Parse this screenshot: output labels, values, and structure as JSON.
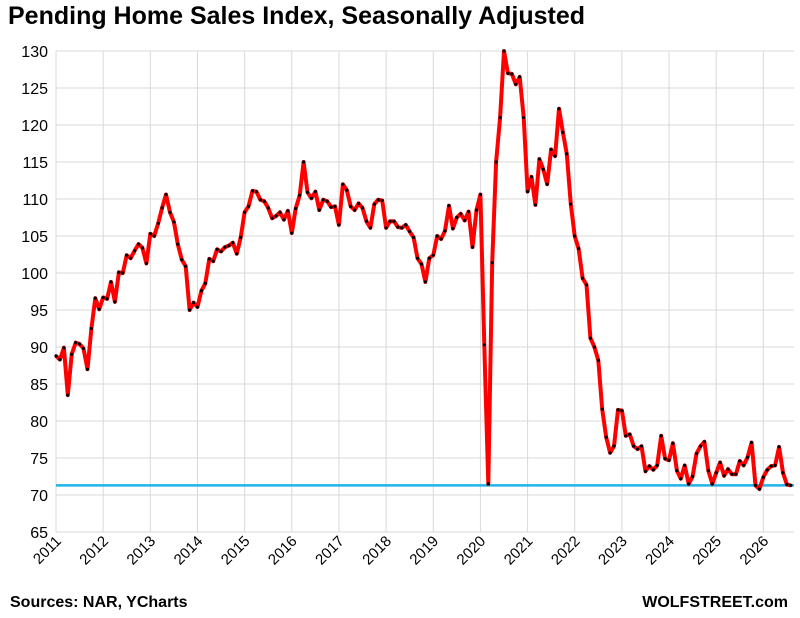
{
  "header": {
    "title": "Pending Home Sales Index, Seasonally Adjusted"
  },
  "footer": {
    "source": "Sources: NAR, YCharts",
    "credit": "WOLFSTREET.com"
  },
  "chart_data": {
    "type": "line",
    "title": "Pending Home Sales Index, Seasonally Adjusted",
    "xlabel": "",
    "ylabel": "",
    "xlim": [
      2011,
      2026.65
    ],
    "ylim": [
      65,
      130
    ],
    "y_ticks": [
      65,
      70,
      75,
      80,
      85,
      90,
      95,
      100,
      105,
      110,
      115,
      120,
      125,
      130
    ],
    "x_ticks": [
      "2011",
      "2012",
      "2013",
      "2014",
      "2015",
      "2016",
      "2017",
      "2018",
      "2019",
      "2020",
      "2021",
      "2022",
      "2023",
      "2024",
      "2025",
      "2026"
    ],
    "grid": true,
    "series_color": "#ff0000",
    "marker_color": "#000000",
    "reference_line": {
      "value": 71.3,
      "color": "#1eb4e6"
    },
    "series": [
      {
        "x": [
          2011.0,
          2011.083,
          2011.167,
          2011.25,
          2011.333,
          2011.417,
          2011.5,
          2011.583,
          2011.667,
          2011.75,
          2011.833,
          2011.917,
          2012.0,
          2012.083,
          2012.167,
          2012.25,
          2012.333,
          2012.417,
          2012.5,
          2012.583,
          2012.667,
          2012.75,
          2012.833,
          2012.917,
          2013.0,
          2013.083,
          2013.167,
          2013.25,
          2013.333,
          2013.417,
          2013.5,
          2013.583,
          2013.667,
          2013.75,
          2013.833,
          2013.917,
          2014.0,
          2014.083,
          2014.167,
          2014.25,
          2014.333,
          2014.417,
          2014.5,
          2014.583,
          2014.667,
          2014.75,
          2014.833,
          2014.917,
          2015.0,
          2015.083,
          2015.167,
          2015.25,
          2015.333,
          2015.417,
          2015.5,
          2015.583,
          2015.667,
          2015.75,
          2015.833,
          2015.917,
          2016.0,
          2016.083,
          2016.167,
          2016.25,
          2016.333,
          2016.417,
          2016.5,
          2016.583,
          2016.667,
          2016.75,
          2016.833,
          2016.917,
          2017.0,
          2017.083,
          2017.167,
          2017.25,
          2017.333,
          2017.417,
          2017.5,
          2017.583,
          2017.667,
          2017.75,
          2017.833,
          2017.917,
          2018.0,
          2018.083,
          2018.167,
          2018.25,
          2018.333,
          2018.417,
          2018.5,
          2018.583,
          2018.667,
          2018.75,
          2018.833,
          2018.917,
          2019.0,
          2019.083,
          2019.167,
          2019.25,
          2019.333,
          2019.417,
          2019.5,
          2019.583,
          2019.667,
          2019.75,
          2019.833,
          2019.917,
          2020.0,
          2020.083,
          2020.167,
          2020.25,
          2020.333,
          2020.417,
          2020.5,
          2020.583,
          2020.667,
          2020.75,
          2020.833,
          2020.917,
          2021.0,
          2021.083,
          2021.167,
          2021.25,
          2021.333,
          2021.417,
          2021.5,
          2021.583,
          2021.667,
          2021.75,
          2021.833,
          2021.917,
          2022.0,
          2022.083,
          2022.167,
          2022.25,
          2022.333,
          2022.417,
          2022.5,
          2022.583,
          2022.667,
          2022.75,
          2022.833,
          2022.917,
          2023.0,
          2023.083,
          2023.167,
          2023.25,
          2023.333,
          2023.417,
          2023.5,
          2023.583,
          2023.667,
          2023.75,
          2023.833,
          2023.917,
          2024.0,
          2024.083,
          2024.167,
          2024.25,
          2024.333,
          2024.417,
          2024.5,
          2024.583,
          2024.667,
          2024.75,
          2024.833,
          2024.917,
          2025.0,
          2025.083,
          2025.167,
          2025.25,
          2025.333,
          2025.417,
          2025.5,
          2025.583,
          2025.667,
          2025.75,
          2025.833,
          2025.917,
          2026.0,
          2026.083,
          2026.167,
          2026.25,
          2026.333,
          2026.417,
          2026.5,
          2026.583
        ],
        "y": [
          88.8,
          88.3,
          89.9,
          83.5,
          89.0,
          90.6,
          90.4,
          89.8,
          87.0,
          92.5,
          96.6,
          95.1,
          96.7,
          96.5,
          98.8,
          96.1,
          100.1,
          100.0,
          102.4,
          102.0,
          103.0,
          103.9,
          103.4,
          101.3,
          105.3,
          105.0,
          106.7,
          108.8,
          110.6,
          108.2,
          106.9,
          103.9,
          101.8,
          100.9,
          95.0,
          96.0,
          95.4,
          97.6,
          98.6,
          101.9,
          101.6,
          103.2,
          102.9,
          103.5,
          103.7,
          104.1,
          102.6,
          104.8,
          108.2,
          109.0,
          111.1,
          111.0,
          109.9,
          109.7,
          108.8,
          107.4,
          107.7,
          108.2,
          107.2,
          108.4,
          105.4,
          108.7,
          110.5,
          115.0,
          110.9,
          110.1,
          111.0,
          108.5,
          109.9,
          109.7,
          108.9,
          109.0,
          106.5,
          112.0,
          111.2,
          109.0,
          108.5,
          109.4,
          108.8,
          107.0,
          106.1,
          109.3,
          109.9,
          109.8,
          106.1,
          107.0,
          107.0,
          106.2,
          106.1,
          106.5,
          105.6,
          104.8,
          102.0,
          101.2,
          98.8,
          102.0,
          102.4,
          105.0,
          104.6,
          105.7,
          109.1,
          106.0,
          107.5,
          108.0,
          107.1,
          108.3,
          103.5,
          108.5,
          110.6,
          90.3,
          71.5,
          101.4,
          115.0,
          121.0,
          130.0,
          127.0,
          126.9,
          125.5,
          126.5,
          121.0,
          111.0,
          113.0,
          109.2,
          115.4,
          114.0,
          112.0,
          116.7,
          115.8,
          122.2,
          119.0,
          116.1,
          109.3,
          105.0,
          103.3,
          99.3,
          98.4,
          91.2,
          90.0,
          88.2,
          81.6,
          77.8,
          75.7,
          76.6,
          81.5,
          81.4,
          78.0,
          78.2,
          76.6,
          76.2,
          76.6,
          73.2,
          73.9,
          73.4,
          74.0,
          78.0,
          74.9,
          74.7,
          77.0,
          73.3,
          72.2,
          74.0,
          71.5,
          72.5,
          75.6,
          76.6,
          77.2,
          73.3,
          71.5,
          73.0,
          74.4,
          72.6,
          73.5,
          72.8,
          72.8,
          74.6,
          74.0,
          75.1,
          77.1,
          71.3,
          70.8,
          72.4,
          73.4,
          73.9,
          74.0,
          76.5,
          73.0,
          71.4,
          71.3
        ]
      }
    ]
  }
}
